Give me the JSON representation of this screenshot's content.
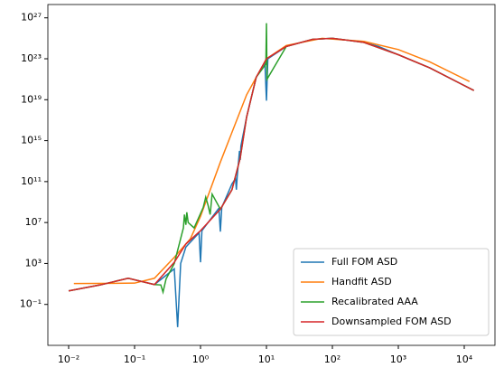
{
  "chart_data": {
    "type": "line",
    "log_x": true,
    "log_y": true,
    "xlim": [
      0.00484,
      29240
    ],
    "ylim": [
      1e-05,
      2e+28
    ],
    "xticks": [
      {
        "value": 0.01,
        "label": "10⁻²"
      },
      {
        "value": 0.1,
        "label": "10⁻¹"
      },
      {
        "value": 1,
        "label": "10⁰"
      },
      {
        "value": 10,
        "label": "10¹"
      },
      {
        "value": 100,
        "label": "10²"
      },
      {
        "value": 1000,
        "label": "10³"
      },
      {
        "value": 10000,
        "label": "10⁴"
      }
    ],
    "yticks": [
      {
        "value": 0.1,
        "label": "10⁻¹"
      },
      {
        "value": 1000,
        "label": "10³"
      },
      {
        "value": 10000000.0,
        "label": "10⁷"
      },
      {
        "value": 100000000000.0,
        "label": "10¹¹"
      },
      {
        "value": 1000000000000000.0,
        "label": "10¹⁵"
      },
      {
        "value": 1e+19,
        "label": "10¹⁹"
      },
      {
        "value": 1e+23,
        "label": "10²³"
      },
      {
        "value": 1e+27,
        "label": "10²⁷"
      }
    ],
    "legend": "lower right",
    "series": [
      {
        "name": "Full FOM ASD",
        "color": "#1f77b4",
        "x": [
          0.01,
          0.03,
          0.08,
          0.2,
          0.4,
          0.45,
          0.5,
          0.6,
          0.95,
          1,
          1.05,
          1.9,
          2,
          2.1,
          3,
          3.4,
          3.5,
          3.6,
          3.9,
          4,
          4.1,
          5,
          7,
          9.5,
          10,
          10.5,
          20,
          50,
          100,
          300,
          500,
          1000,
          3000,
          14000
        ],
        "values": [
          2.1,
          8,
          36,
          8.7,
          300,
          0.0006,
          1000,
          40000,
          1000000.0,
          1300,
          1600000.0,
          250000000.0,
          1300000.0,
          300000000.0,
          60000000000.0,
          200000000000.0,
          16000000000.0,
          300000000000.0,
          100000000000000.0,
          13000000000000.0,
          300000000000000.0,
          2e+17,
          1.6e+21,
          3e+22,
          8e+18,
          1e+23,
          1.6e+24,
          8e+24,
          1e+25,
          4e+24,
          1.6e+24,
          2.5e+23,
          1.3e+22,
          8e+19
        ]
      },
      {
        "name": "Handfit ASD",
        "color": "#ff7f0e",
        "x": [
          0.012,
          0.1,
          0.2,
          0.4,
          0.7,
          1,
          2,
          5,
          10,
          20,
          70,
          300,
          1000,
          3000,
          12000
        ],
        "values": [
          11,
          12,
          36,
          4000,
          250000.0,
          40000000.0,
          8000000000000.0,
          3e+19,
          1e+23,
          2e+24,
          1e+25,
          5e+24,
          8e+23,
          5e+22,
          6e+20
        ]
      },
      {
        "name": "Recalibrated AAA",
        "color": "#2ca02c",
        "x": [
          0.01,
          0.03,
          0.08,
          0.2,
          0.25,
          0.27,
          0.3,
          0.4,
          0.55,
          0.57,
          0.6,
          0.62,
          0.65,
          0.8,
          1.1,
          1.2,
          1.3,
          1.4,
          1.5,
          2,
          3,
          4,
          5,
          7,
          9.8,
          10,
          10.2,
          20,
          50,
          100,
          300,
          1000,
          3000,
          14000
        ],
        "values": [
          2.1,
          8,
          36,
          8.7,
          8,
          1.6,
          30,
          1000,
          3000000.0,
          60000000.0,
          6000000.0,
          100000000.0,
          10000000.0,
          3000000.0,
          300000000.0,
          3000000000.0,
          500000000.0,
          60000000.0,
          6000000000.0,
          200000000.0,
          16000000000.0,
          20000000000000.0,
          2e+17,
          1.6e+21,
          3e+22,
          3e+26,
          1e+21,
          1.6e+24,
          8e+24,
          1e+25,
          4e+24,
          2.5e+23,
          1.3e+22,
          8e+19
        ]
      },
      {
        "name": "Downsampled FOM ASD",
        "color": "#d62728",
        "x": [
          0.01,
          0.03,
          0.08,
          0.2,
          0.4,
          0.6,
          1,
          2,
          3,
          4,
          5,
          7,
          10,
          20,
          50,
          100,
          300,
          1000,
          3000,
          14000
        ],
        "values": [
          2.1,
          8,
          36,
          8.7,
          1300,
          80000,
          1600000.0,
          200000000.0,
          16000000000.0,
          20000000000000.0,
          2e+17,
          1.6e+21,
          1e+23,
          1.6e+24,
          8e+24,
          1e+25,
          4e+24,
          2.5e+23,
          1.3e+22,
          8e+19
        ]
      }
    ]
  }
}
